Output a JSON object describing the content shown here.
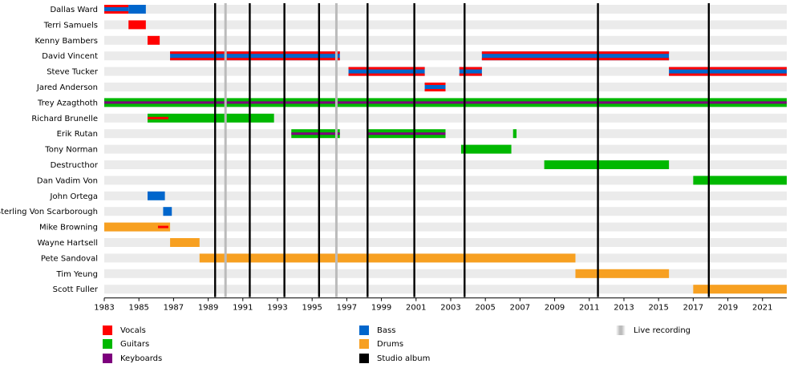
{
  "chart_data": {
    "type": "timeline",
    "x_range": [
      1983,
      2022.4
    ],
    "tick_labels": [
      "1983",
      "1985",
      "1987",
      "1989",
      "1991",
      "1993",
      "1995",
      "1997",
      "1999",
      "2001",
      "2003",
      "2005",
      "2007",
      "2009",
      "2011",
      "2013",
      "2015",
      "2017",
      "2019",
      "2021"
    ],
    "tick_values": [
      1983,
      1985,
      1987,
      1989,
      1991,
      1993,
      1995,
      1997,
      1999,
      2001,
      2003,
      2005,
      2007,
      2009,
      2011,
      2013,
      2015,
      2017,
      2019,
      2021
    ],
    "members": [
      "Dallas Ward",
      "Terri Samuels",
      "Kenny Bambers",
      "David Vincent",
      "Steve Tucker",
      "Jared Anderson",
      "Trey Azagthoth",
      "Richard Brunelle",
      "Erik Rutan",
      "Tony Norman",
      "Destructhor",
      "Dan Vadim Von",
      "John Ortega",
      "Sterling Von Scarborough",
      "Mike Browning",
      "Wayne Hartsell",
      "Pete Sandoval",
      "Tim Yeung",
      "Scott Fuller"
    ],
    "bars": [
      {
        "row": 0,
        "start": 1983.0,
        "end": 1984.4,
        "role": "bass",
        "secondary": "vocals"
      },
      {
        "row": 0,
        "start": 1984.4,
        "end": 1985.4,
        "role": "bass"
      },
      {
        "row": 1,
        "start": 1984.4,
        "end": 1985.4,
        "role": "vocals"
      },
      {
        "row": 2,
        "start": 1985.5,
        "end": 1986.2,
        "role": "vocals"
      },
      {
        "row": 3,
        "start": 1986.8,
        "end": 1996.6,
        "role": "bass",
        "secondary": "vocals"
      },
      {
        "row": 4,
        "start": 1997.1,
        "end": 2001.5,
        "role": "bass",
        "secondary": "vocals"
      },
      {
        "row": 4,
        "start": 2003.5,
        "end": 2004.8,
        "role": "bass",
        "secondary": "vocals"
      },
      {
        "row": 3,
        "start": 2004.8,
        "end": 2015.6,
        "role": "bass",
        "secondary": "vocals"
      },
      {
        "row": 4,
        "start": 2015.6,
        "end": 2022.4,
        "role": "bass",
        "secondary": "vocals"
      },
      {
        "row": 5,
        "start": 2001.5,
        "end": 2002.7,
        "role": "bass",
        "secondary": "vocals"
      },
      {
        "row": 6,
        "start": 1983.0,
        "end": 2022.4,
        "role": "guitars",
        "secondary": "keyboards"
      },
      {
        "row": 7,
        "start": 1985.5,
        "end": 1992.8,
        "role": "guitars"
      },
      {
        "row": 7,
        "start": 1985.5,
        "end": 1986.7,
        "role": "vocals_line"
      },
      {
        "row": 8,
        "start": 1993.8,
        "end": 1996.6,
        "role": "guitars",
        "secondary": "keyboards"
      },
      {
        "row": 8,
        "start": 1998.2,
        "end": 2002.7,
        "role": "guitars",
        "secondary": "keyboards"
      },
      {
        "row": 8,
        "start": 2006.6,
        "end": 2006.8,
        "role": "guitars"
      },
      {
        "row": 9,
        "start": 2003.6,
        "end": 2006.5,
        "role": "guitars"
      },
      {
        "row": 10,
        "start": 2008.4,
        "end": 2015.6,
        "role": "guitars"
      },
      {
        "row": 11,
        "start": 2017.0,
        "end": 2022.4,
        "role": "guitars"
      },
      {
        "row": 12,
        "start": 1985.5,
        "end": 1986.5,
        "role": "bass"
      },
      {
        "row": 13,
        "start": 1986.4,
        "end": 1986.9,
        "role": "bass"
      },
      {
        "row": 14,
        "start": 1983.0,
        "end": 1986.8,
        "role": "drums"
      },
      {
        "row": 14,
        "start": 1986.1,
        "end": 1986.7,
        "role": "vocals_line"
      },
      {
        "row": 15,
        "start": 1986.8,
        "end": 1988.5,
        "role": "drums"
      },
      {
        "row": 16,
        "start": 1988.5,
        "end": 2010.2,
        "role": "drums"
      },
      {
        "row": 17,
        "start": 2010.2,
        "end": 2015.6,
        "role": "drums"
      },
      {
        "row": 18,
        "start": 2017.0,
        "end": 2022.4,
        "role": "drums"
      }
    ],
    "studio_albums": [
      1989.4,
      1991.4,
      1993.4,
      1995.4,
      1998.2,
      2000.9,
      2003.8,
      2011.5,
      2017.9
    ],
    "live_recordings": [
      1990.0,
      1996.4
    ],
    "legend": [
      {
        "label": "Vocals",
        "role": "vocals"
      },
      {
        "label": "Guitars",
        "role": "guitars"
      },
      {
        "label": "Keyboards",
        "role": "keyboards"
      },
      {
        "label": "Bass",
        "role": "bass"
      },
      {
        "label": "Drums",
        "role": "drums"
      },
      {
        "label": "Studio album",
        "role": "studio"
      },
      {
        "label": "Live recording",
        "role": "live"
      }
    ]
  },
  "colors": {
    "vocals": "#ff0000",
    "guitars": "#00b800",
    "keyboards": "#7d007d",
    "bass": "#0066cc",
    "drums": "#f7a021",
    "studio": "#000000",
    "live": "#bbbbbb",
    "row_stripe": "#ebebeb"
  }
}
